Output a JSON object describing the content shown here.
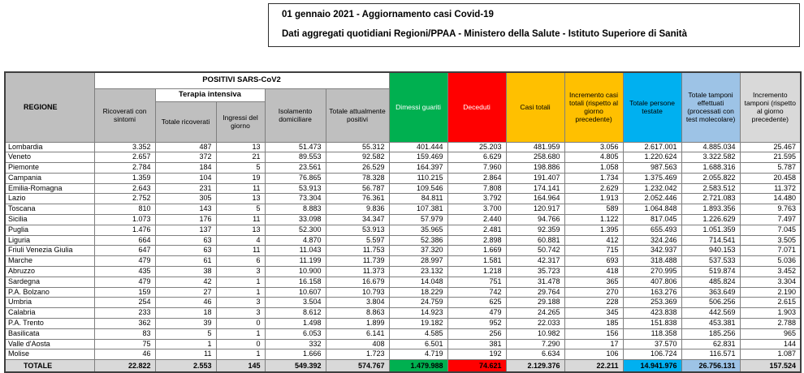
{
  "report_header": {
    "line1": "01 gennaio 2021 - Aggiornamento casi Covid-19",
    "line2": "Dati aggregati quotidiani Regioni/PPAA - Ministero della Salute - Istituto Superiore di Sanità"
  },
  "table": {
    "headers": {
      "regione": "REGIONE",
      "positivi_group": "POSITIVI SARS-CoV2",
      "terapia_group": "Terapia intensiva",
      "ricoverati_sintomi": "Ricoverati con sintomi",
      "totale_ricoverati": "Totale ricoverati",
      "ingressi_giorno": "Ingressi del giorno",
      "isolamento": "Isolamento domiciliare",
      "totale_positivi": "Totale attualmente positivi",
      "dimessi_guariti": "Dimessi guariti",
      "deceduti": "Deceduti",
      "casi_totali": "Casi totali",
      "incremento_casi": "Incremento casi totali (rispetto al giorno precedente)",
      "persone_testate": "Totale persone testate",
      "tamponi_effettuati": "Totale tamponi effettuati (processati con test molecolare)",
      "incremento_tamponi": "Incremento tamponi (rispetto al giorno precedente)"
    },
    "rows": [
      [
        "Lombardia",
        "3.352",
        "487",
        "13",
        "51.473",
        "55.312",
        "401.444",
        "25.203",
        "481.959",
        "3.056",
        "2.617.001",
        "4.885.034",
        "25.467"
      ],
      [
        "Veneto",
        "2.657",
        "372",
        "21",
        "89.553",
        "92.582",
        "159.469",
        "6.629",
        "258.680",
        "4.805",
        "1.220.624",
        "3.322.582",
        "21.595"
      ],
      [
        "Piemonte",
        "2.784",
        "184",
        "5",
        "23.561",
        "26.529",
        "164.397",
        "7.960",
        "198.886",
        "1.058",
        "987.563",
        "1.688.316",
        "5.787"
      ],
      [
        "Campania",
        "1.359",
        "104",
        "19",
        "76.865",
        "78.328",
        "110.215",
        "2.864",
        "191.407",
        "1.734",
        "1.375.469",
        "2.055.822",
        "20.458"
      ],
      [
        "Emilia-Romagna",
        "2.643",
        "231",
        "11",
        "53.913",
        "56.787",
        "109.546",
        "7.808",
        "174.141",
        "2.629",
        "1.232.042",
        "2.583.512",
        "11.372"
      ],
      [
        "Lazio",
        "2.752",
        "305",
        "13",
        "73.304",
        "76.361",
        "84.811",
        "3.792",
        "164.964",
        "1.913",
        "2.052.446",
        "2.721.083",
        "14.480"
      ],
      [
        "Toscana",
        "810",
        "143",
        "5",
        "8.883",
        "9.836",
        "107.381",
        "3.700",
        "120.917",
        "589",
        "1.064.848",
        "1.893.356",
        "9.763"
      ],
      [
        "Sicilia",
        "1.073",
        "176",
        "11",
        "33.098",
        "34.347",
        "57.979",
        "2.440",
        "94.766",
        "1.122",
        "817.045",
        "1.226.629",
        "7.497"
      ],
      [
        "Puglia",
        "1.476",
        "137",
        "13",
        "52.300",
        "53.913",
        "35.965",
        "2.481",
        "92.359",
        "1.395",
        "655.493",
        "1.051.359",
        "7.045"
      ],
      [
        "Liguria",
        "664",
        "63",
        "4",
        "4.870",
        "5.597",
        "52.386",
        "2.898",
        "60.881",
        "412",
        "324.246",
        "714.541",
        "3.505"
      ],
      [
        "Friuli Venezia Giulia",
        "647",
        "63",
        "11",
        "11.043",
        "11.753",
        "37.320",
        "1.669",
        "50.742",
        "715",
        "342.937",
        "940.153",
        "7.071"
      ],
      [
        "Marche",
        "479",
        "61",
        "6",
        "11.199",
        "11.739",
        "28.997",
        "1.581",
        "42.317",
        "693",
        "318.488",
        "537.533",
        "5.036"
      ],
      [
        "Abruzzo",
        "435",
        "38",
        "3",
        "10.900",
        "11.373",
        "23.132",
        "1.218",
        "35.723",
        "418",
        "270.995",
        "519.874",
        "3.452"
      ],
      [
        "Sardegna",
        "479",
        "42",
        "1",
        "16.158",
        "16.679",
        "14.048",
        "751",
        "31.478",
        "365",
        "407.806",
        "485.824",
        "3.304"
      ],
      [
        "P.A. Bolzano",
        "159",
        "27",
        "1",
        "10.607",
        "10.793",
        "18.229",
        "742",
        "29.764",
        "270",
        "163.276",
        "363.649",
        "2.190"
      ],
      [
        "Umbria",
        "254",
        "46",
        "3",
        "3.504",
        "3.804",
        "24.759",
        "625",
        "29.188",
        "228",
        "253.369",
        "506.256",
        "2.615"
      ],
      [
        "Calabria",
        "233",
        "18",
        "3",
        "8.612",
        "8.863",
        "14.923",
        "479",
        "24.265",
        "345",
        "423.838",
        "442.569",
        "1.903"
      ],
      [
        "P.A. Trento",
        "362",
        "39",
        "0",
        "1.498",
        "1.899",
        "19.182",
        "952",
        "22.033",
        "185",
        "151.838",
        "453.381",
        "2.788"
      ],
      [
        "Basilicata",
        "83",
        "5",
        "1",
        "6.053",
        "6.141",
        "4.585",
        "256",
        "10.982",
        "156",
        "118.358",
        "185.256",
        "965"
      ],
      [
        "Valle d'Aosta",
        "75",
        "1",
        "0",
        "332",
        "408",
        "6.501",
        "381",
        "7.290",
        "17",
        "37.570",
        "62.831",
        "144"
      ],
      [
        "Molise",
        "46",
        "11",
        "1",
        "1.666",
        "1.723",
        "4.719",
        "192",
        "6.634",
        "106",
        "106.724",
        "116.571",
        "1.087"
      ]
    ],
    "totale": [
      "TOTALE",
      "22.822",
      "2.553",
      "145",
      "549.392",
      "574.767",
      "1.479.988",
      "74.621",
      "2.129.376",
      "22.211",
      "14.941.976",
      "26.756.131",
      "157.524"
    ]
  },
  "colors": {
    "header_gray": "#bfbfbf",
    "totale_gray": "#d9d9d9",
    "green": "#00b050",
    "red": "#ff0000",
    "yellow": "#ffc000",
    "cyan": "#00b0f0",
    "light_blue": "#9dc3e6"
  }
}
